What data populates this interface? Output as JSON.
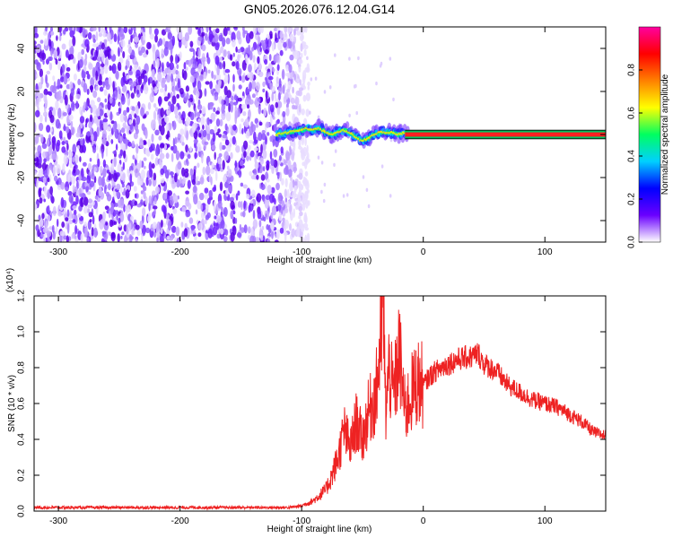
{
  "title": "GN05.2026.076.12.04.G14",
  "chart_data": [
    {
      "type": "heatmap",
      "xlabel": "Height of straight line (km)",
      "ylabel": "Frequency (Hz)",
      "xlim": [
        -320,
        150
      ],
      "ylim": [
        -50,
        50
      ],
      "xticks": [
        -300,
        -200,
        -100,
        0,
        100
      ],
      "yticks": [
        -40,
        -20,
        0,
        20,
        40
      ],
      "colorbar": {
        "label": "Normalized spectral amplitude",
        "range": [
          0,
          1
        ],
        "ticks": [
          "0.0",
          "0.2",
          "0.4",
          "0.6",
          "0.8"
        ],
        "colors": [
          "#ffffff",
          "#6a00ff",
          "#0000ff",
          "#00d0ff",
          "#00ff60",
          "#ffff00",
          "#ff8000",
          "#ff0000",
          "#ff00a0"
        ]
      },
      "noise_region_x": [
        -320,
        -100
      ],
      "signal_track": {
        "x": [
          -120,
          -110,
          -100,
          -95,
          -90,
          -85,
          -80,
          -75,
          -70,
          -65,
          -60,
          -55,
          -50,
          -45,
          -40,
          -35,
          -30,
          -25,
          -20,
          -15,
          -10,
          -5,
          0,
          50,
          100,
          150
        ],
        "y": [
          0,
          1,
          2,
          3,
          2,
          3,
          1,
          0,
          1,
          2,
          1,
          -1,
          -3,
          -2,
          0,
          1,
          1,
          1,
          0,
          1,
          0,
          0,
          0,
          0,
          0,
          0
        ]
      }
    },
    {
      "type": "line",
      "xlabel": "Height of straight line (km)",
      "ylabel": "SNR (10 * v/v)",
      "ymultiplier": "(x10⁴)",
      "xlim": [
        -320,
        150
      ],
      "ylim": [
        0,
        1.2
      ],
      "xticks": [
        -300,
        -200,
        -100,
        0,
        100
      ],
      "yticks": [
        "0.0",
        "0.2",
        "0.4",
        "0.6",
        "0.8",
        "1.0",
        "1.2"
      ],
      "color": "#ee2222",
      "series": [
        {
          "x": [
            -320,
            -300,
            -250,
            -200,
            -150,
            -110,
            -100,
            -90,
            -80,
            -75,
            -70,
            -65,
            -60,
            -55,
            -50,
            -45,
            -42,
            -40,
            -38,
            -35,
            -33,
            -31,
            -28,
            -25,
            -22,
            -20,
            -15,
            -10,
            -5,
            0,
            5,
            10,
            20,
            30,
            40,
            45,
            50,
            60,
            70,
            80,
            90,
            100,
            110,
            120,
            130,
            140,
            150
          ],
          "y": [
            0.02,
            0.02,
            0.02,
            0.02,
            0.02,
            0.02,
            0.03,
            0.06,
            0.12,
            0.2,
            0.3,
            0.45,
            0.35,
            0.5,
            0.4,
            0.55,
            0.6,
            0.62,
            0.7,
            0.95,
            1.2,
            0.55,
            0.8,
            0.65,
            0.75,
            0.9,
            0.55,
            0.65,
            0.72,
            0.7,
            0.75,
            0.78,
            0.82,
            0.85,
            0.86,
            0.88,
            0.82,
            0.78,
            0.7,
            0.66,
            0.62,
            0.6,
            0.58,
            0.54,
            0.5,
            0.44,
            0.42
          ]
        }
      ]
    }
  ]
}
